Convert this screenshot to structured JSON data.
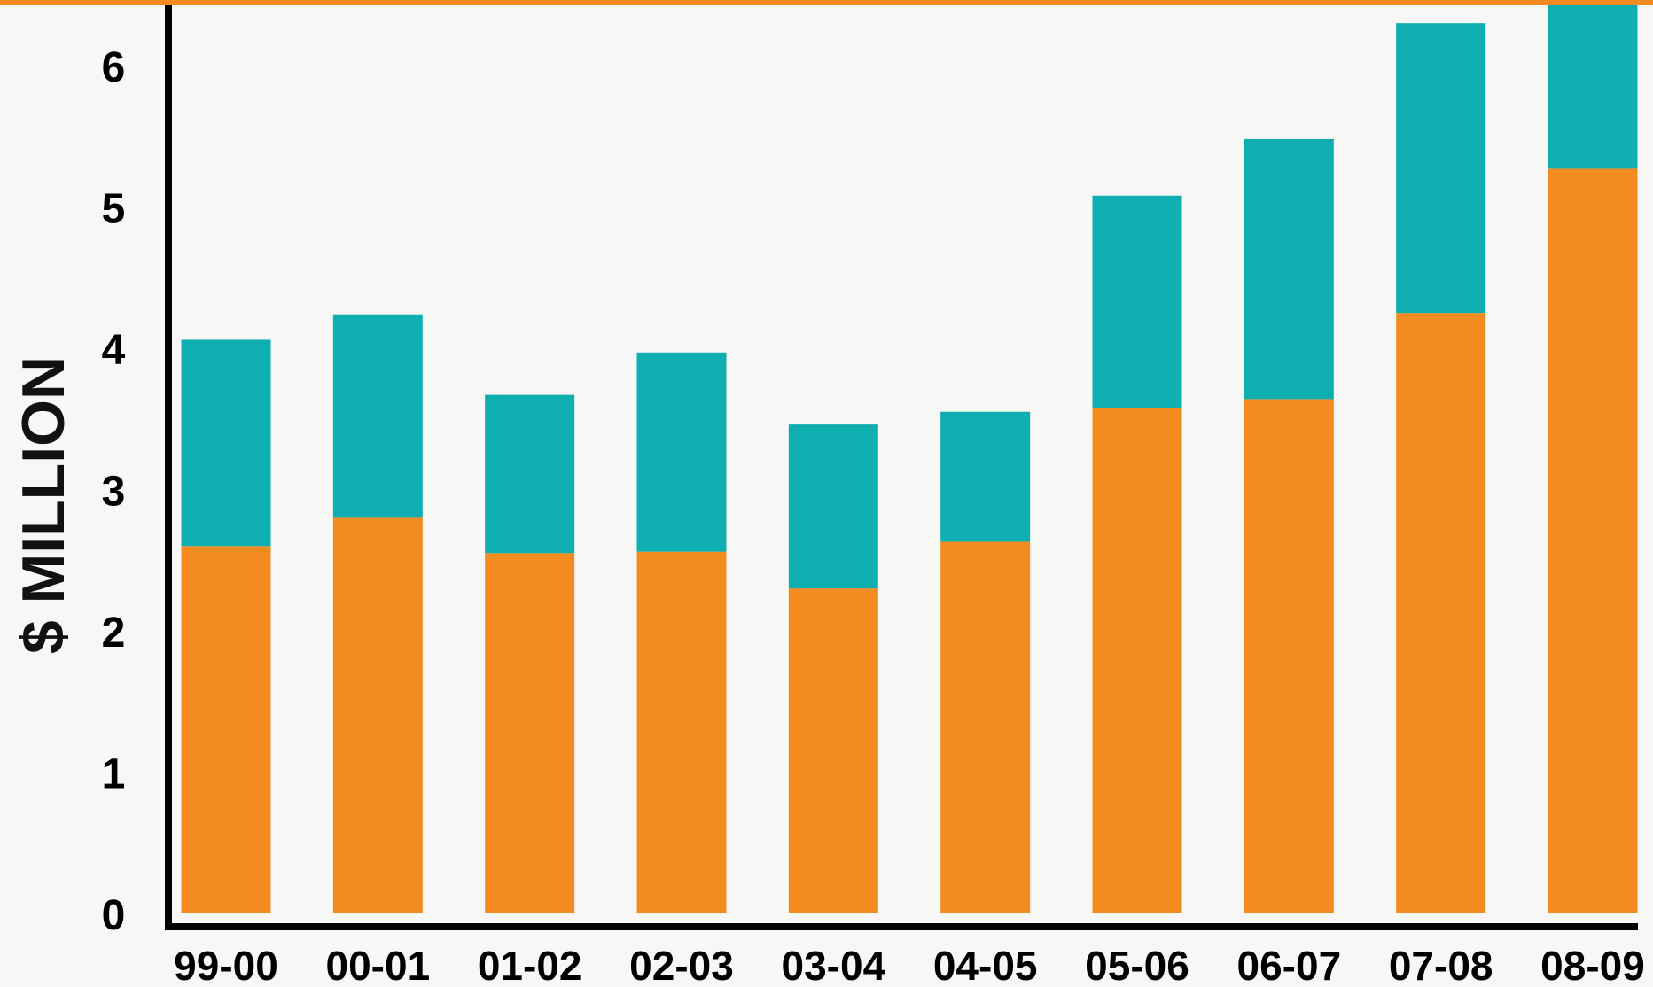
{
  "chart_data": {
    "type": "bar",
    "stacked": true,
    "ylabel": "$ MILLION",
    "ylim": [
      0,
      6.4
    ],
    "yticks": [
      "0",
      "1",
      "2",
      "3",
      "4",
      "5",
      "6"
    ],
    "categories": [
      "99-00",
      "00-01",
      "01-02",
      "02-03",
      "03-04",
      "04-05",
      "05-06",
      "06-07",
      "07-08",
      "08-09"
    ],
    "series": [
      {
        "color": "#f38b20",
        "values": [
          2.6,
          2.8,
          2.55,
          2.56,
          2.3,
          2.63,
          3.58,
          3.64,
          4.25,
          5.27
        ]
      },
      {
        "color": "#0fafb1",
        "values": [
          1.46,
          1.44,
          1.12,
          1.41,
          1.16,
          0.92,
          1.5,
          1.84,
          2.05,
          1.3
        ]
      }
    ],
    "grid": false,
    "legend": "none",
    "accent_bar_color": "#f38b20"
  }
}
